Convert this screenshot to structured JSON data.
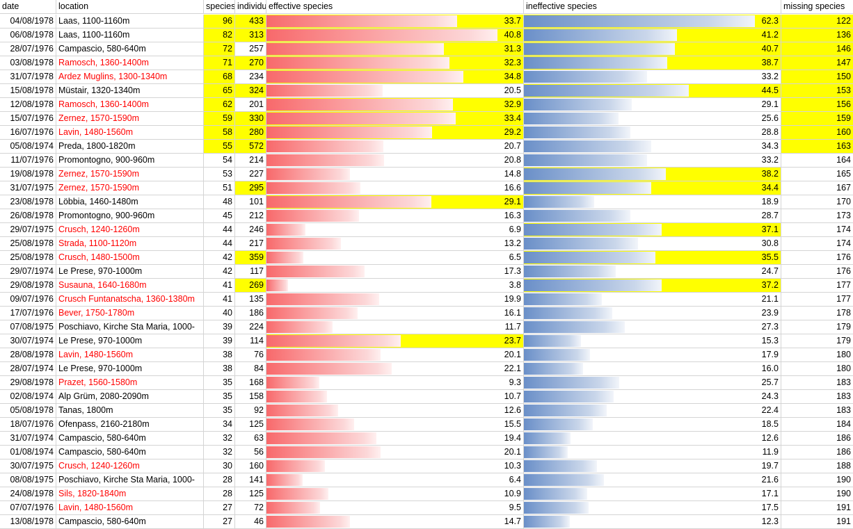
{
  "headers": {
    "date": "date",
    "location": "location",
    "species": "species",
    "individuals": "individuals",
    "effective": "effective species",
    "ineffective": "ineffective species",
    "missing": "missing species"
  },
  "colors": {
    "highlight": "#ffff00",
    "red_text": "#ff0000",
    "eff_bar": "#f8696b",
    "ineff_bar": "#6a8fc8"
  },
  "rows": [
    {
      "date": "04/08/1978",
      "location": "Laas, 1100-1160m",
      "species": 96,
      "individuals": 433,
      "effective": "33.7",
      "ineffective": "62.3",
      "missing": 122,
      "loc_red": false,
      "hl": [
        "species",
        "individuals",
        "effective",
        "ineffective",
        "missing"
      ]
    },
    {
      "date": "06/08/1978",
      "location": "Laas, 1100-1160m",
      "species": 82,
      "individuals": 313,
      "effective": "40.8",
      "ineffective": "41.2",
      "missing": 136,
      "loc_red": false,
      "hl": [
        "species",
        "individuals",
        "effective",
        "ineffective",
        "missing"
      ]
    },
    {
      "date": "28/07/1976",
      "location": "Campascio, 580-640m",
      "species": 72,
      "individuals": 257,
      "effective": "31.3",
      "ineffective": "40.7",
      "missing": 146,
      "loc_red": false,
      "hl": [
        "species",
        "effective",
        "ineffective",
        "missing"
      ]
    },
    {
      "date": "03/08/1978",
      "location": "Ramosch, 1360-1400m",
      "species": 71,
      "individuals": 270,
      "effective": "32.3",
      "ineffective": "38.7",
      "missing": 147,
      "loc_red": true,
      "hl": [
        "species",
        "individuals",
        "effective",
        "ineffective",
        "missing"
      ]
    },
    {
      "date": "31/07/1978",
      "location": "Ardez Muglins, 1300-1340m",
      "species": 68,
      "individuals": 234,
      "effective": "34.8",
      "ineffective": "33.2",
      "missing": 150,
      "loc_red": true,
      "hl": [
        "species",
        "effective",
        "missing"
      ]
    },
    {
      "date": "15/08/1978",
      "location": "Müstair, 1320-1340m",
      "species": 65,
      "individuals": 324,
      "effective": "20.5",
      "ineffective": "44.5",
      "missing": 153,
      "loc_red": false,
      "hl": [
        "species",
        "individuals",
        "ineffective",
        "missing"
      ]
    },
    {
      "date": "12/08/1978",
      "location": "Ramosch, 1360-1400m",
      "species": 62,
      "individuals": 201,
      "effective": "32.9",
      "ineffective": "29.1",
      "missing": 156,
      "loc_red": true,
      "hl": [
        "species",
        "effective",
        "missing"
      ]
    },
    {
      "date": "15/07/1976",
      "location": "Zernez, 1570-1590m",
      "species": 59,
      "individuals": 330,
      "effective": "33.4",
      "ineffective": "25.6",
      "missing": 159,
      "loc_red": true,
      "hl": [
        "species",
        "individuals",
        "effective",
        "missing"
      ]
    },
    {
      "date": "16/07/1976",
      "location": "Lavin, 1480-1560m",
      "species": 58,
      "individuals": 280,
      "effective": "29.2",
      "ineffective": "28.8",
      "missing": 160,
      "loc_red": true,
      "hl": [
        "species",
        "individuals",
        "effective",
        "missing"
      ]
    },
    {
      "date": "05/08/1974",
      "location": "Preda, 1800-1820m",
      "species": 55,
      "individuals": 572,
      "effective": "20.7",
      "ineffective": "34.3",
      "missing": 163,
      "loc_red": false,
      "hl": [
        "species",
        "individuals",
        "missing"
      ]
    },
    {
      "date": "11/07/1976",
      "location": "Promontogno, 900-960m",
      "species": 54,
      "individuals": 214,
      "effective": "20.8",
      "ineffective": "33.2",
      "missing": 164,
      "loc_red": false,
      "hl": []
    },
    {
      "date": "19/08/1978",
      "location": "Zernez, 1570-1590m",
      "species": 53,
      "individuals": 227,
      "effective": "14.8",
      "ineffective": "38.2",
      "missing": 165,
      "loc_red": true,
      "hl": [
        "ineffective"
      ]
    },
    {
      "date": "31/07/1975",
      "location": "Zernez, 1570-1590m",
      "species": 51,
      "individuals": 295,
      "effective": "16.6",
      "ineffective": "34.4",
      "missing": 167,
      "loc_red": true,
      "hl": [
        "individuals",
        "ineffective"
      ]
    },
    {
      "date": "23/08/1978",
      "location": "Löbbia, 1460-1480m",
      "species": 48,
      "individuals": 101,
      "effective": "29.1",
      "ineffective": "18.9",
      "missing": 170,
      "loc_red": false,
      "hl": [
        "effective"
      ]
    },
    {
      "date": "26/08/1978",
      "location": "Promontogno, 900-960m",
      "species": 45,
      "individuals": 212,
      "effective": "16.3",
      "ineffective": "28.7",
      "missing": 173,
      "loc_red": false,
      "hl": []
    },
    {
      "date": "29/07/1975",
      "location": "Crusch, 1240-1260m",
      "species": 44,
      "individuals": 246,
      "effective": "6.9",
      "ineffective": "37.1",
      "missing": 174,
      "loc_red": true,
      "hl": [
        "ineffective"
      ]
    },
    {
      "date": "25/08/1978",
      "location": "Strada, 1100-1120m",
      "species": 44,
      "individuals": 217,
      "effective": "13.2",
      "ineffective": "30.8",
      "missing": 174,
      "loc_red": true,
      "hl": []
    },
    {
      "date": "25/08/1978",
      "location": "Crusch, 1480-1500m",
      "species": 42,
      "individuals": 359,
      "effective": "6.5",
      "ineffective": "35.5",
      "missing": 176,
      "loc_red": true,
      "hl": [
        "individuals",
        "ineffective"
      ]
    },
    {
      "date": "29/07/1974",
      "location": "Le Prese, 970-1000m",
      "species": 42,
      "individuals": 117,
      "effective": "17.3",
      "ineffective": "24.7",
      "missing": 176,
      "loc_red": false,
      "hl": []
    },
    {
      "date": "29/08/1978",
      "location": "Susauna, 1640-1680m",
      "species": 41,
      "individuals": 269,
      "effective": "3.8",
      "ineffective": "37.2",
      "missing": 177,
      "loc_red": true,
      "hl": [
        "individuals",
        "ineffective"
      ]
    },
    {
      "date": "09/07/1976",
      "location": "Crusch Funtanatscha, 1360-1380m",
      "species": 41,
      "individuals": 135,
      "effective": "19.9",
      "ineffective": "21.1",
      "missing": 177,
      "loc_red": true,
      "hl": []
    },
    {
      "date": "17/07/1976",
      "location": "Bever, 1750-1780m",
      "species": 40,
      "individuals": 186,
      "effective": "16.1",
      "ineffective": "23.9",
      "missing": 178,
      "loc_red": true,
      "hl": []
    },
    {
      "date": "07/08/1975",
      "location": "Poschiavo, Kirche Sta Maria, 1000-",
      "species": 39,
      "individuals": 224,
      "effective": "11.7",
      "ineffective": "27.3",
      "missing": 179,
      "loc_red": false,
      "hl": []
    },
    {
      "date": "30/07/1974",
      "location": "Le Prese, 970-1000m",
      "species": 39,
      "individuals": 114,
      "effective": "23.7",
      "ineffective": "15.3",
      "missing": 179,
      "loc_red": false,
      "hl": [
        "effective"
      ]
    },
    {
      "date": "28/08/1978",
      "location": "Lavin, 1480-1560m",
      "species": 38,
      "individuals": 76,
      "effective": "20.1",
      "ineffective": "17.9",
      "missing": 180,
      "loc_red": true,
      "hl": []
    },
    {
      "date": "28/07/1974",
      "location": "Le Prese, 970-1000m",
      "species": 38,
      "individuals": 84,
      "effective": "22.1",
      "ineffective": "16.0",
      "missing": 180,
      "loc_red": false,
      "hl": []
    },
    {
      "date": "29/08/1978",
      "location": "Prazet, 1560-1580m",
      "species": 35,
      "individuals": 168,
      "effective": "9.3",
      "ineffective": "25.7",
      "missing": 183,
      "loc_red": true,
      "hl": []
    },
    {
      "date": "02/08/1974",
      "location": "Alp Grüm, 2080-2090m",
      "species": 35,
      "individuals": 158,
      "effective": "10.7",
      "ineffective": "24.3",
      "missing": 183,
      "loc_red": false,
      "hl": []
    },
    {
      "date": "05/08/1978",
      "location": "Tanas, 1800m",
      "species": 35,
      "individuals": 92,
      "effective": "12.6",
      "ineffective": "22.4",
      "missing": 183,
      "loc_red": false,
      "hl": []
    },
    {
      "date": "18/07/1976",
      "location": "Ofenpass, 2160-2180m",
      "species": 34,
      "individuals": 125,
      "effective": "15.5",
      "ineffective": "18.5",
      "missing": 184,
      "loc_red": false,
      "hl": []
    },
    {
      "date": "31/07/1974",
      "location": "Campascio, 580-640m",
      "species": 32,
      "individuals": 63,
      "effective": "19.4",
      "ineffective": "12.6",
      "missing": 186,
      "loc_red": false,
      "hl": []
    },
    {
      "date": "01/08/1974",
      "location": "Campascio, 580-640m",
      "species": 32,
      "individuals": 56,
      "effective": "20.1",
      "ineffective": "11.9",
      "missing": 186,
      "loc_red": false,
      "hl": []
    },
    {
      "date": "30/07/1975",
      "location": "Crusch, 1240-1260m",
      "species": 30,
      "individuals": 160,
      "effective": "10.3",
      "ineffective": "19.7",
      "missing": 188,
      "loc_red": true,
      "hl": []
    },
    {
      "date": "08/08/1975",
      "location": "Poschiavo, Kirche Sta Maria, 1000-",
      "species": 28,
      "individuals": 141,
      "effective": "6.4",
      "ineffective": "21.6",
      "missing": 190,
      "loc_red": false,
      "hl": []
    },
    {
      "date": "24/08/1978",
      "location": "Sils, 1820-1840m",
      "species": 28,
      "individuals": 125,
      "effective": "10.9",
      "ineffective": "17.1",
      "missing": 190,
      "loc_red": true,
      "hl": []
    },
    {
      "date": "07/07/1976",
      "location": "Lavin, 1480-1560m",
      "species": 27,
      "individuals": 72,
      "effective": "9.5",
      "ineffective": "17.5",
      "missing": 191,
      "loc_red": true,
      "hl": []
    },
    {
      "date": "13/08/1978",
      "location": "Campascio, 580-640m",
      "species": 27,
      "individuals": 46,
      "effective": "14.7",
      "ineffective": "12.3",
      "missing": 191,
      "loc_red": false,
      "hl": []
    }
  ]
}
